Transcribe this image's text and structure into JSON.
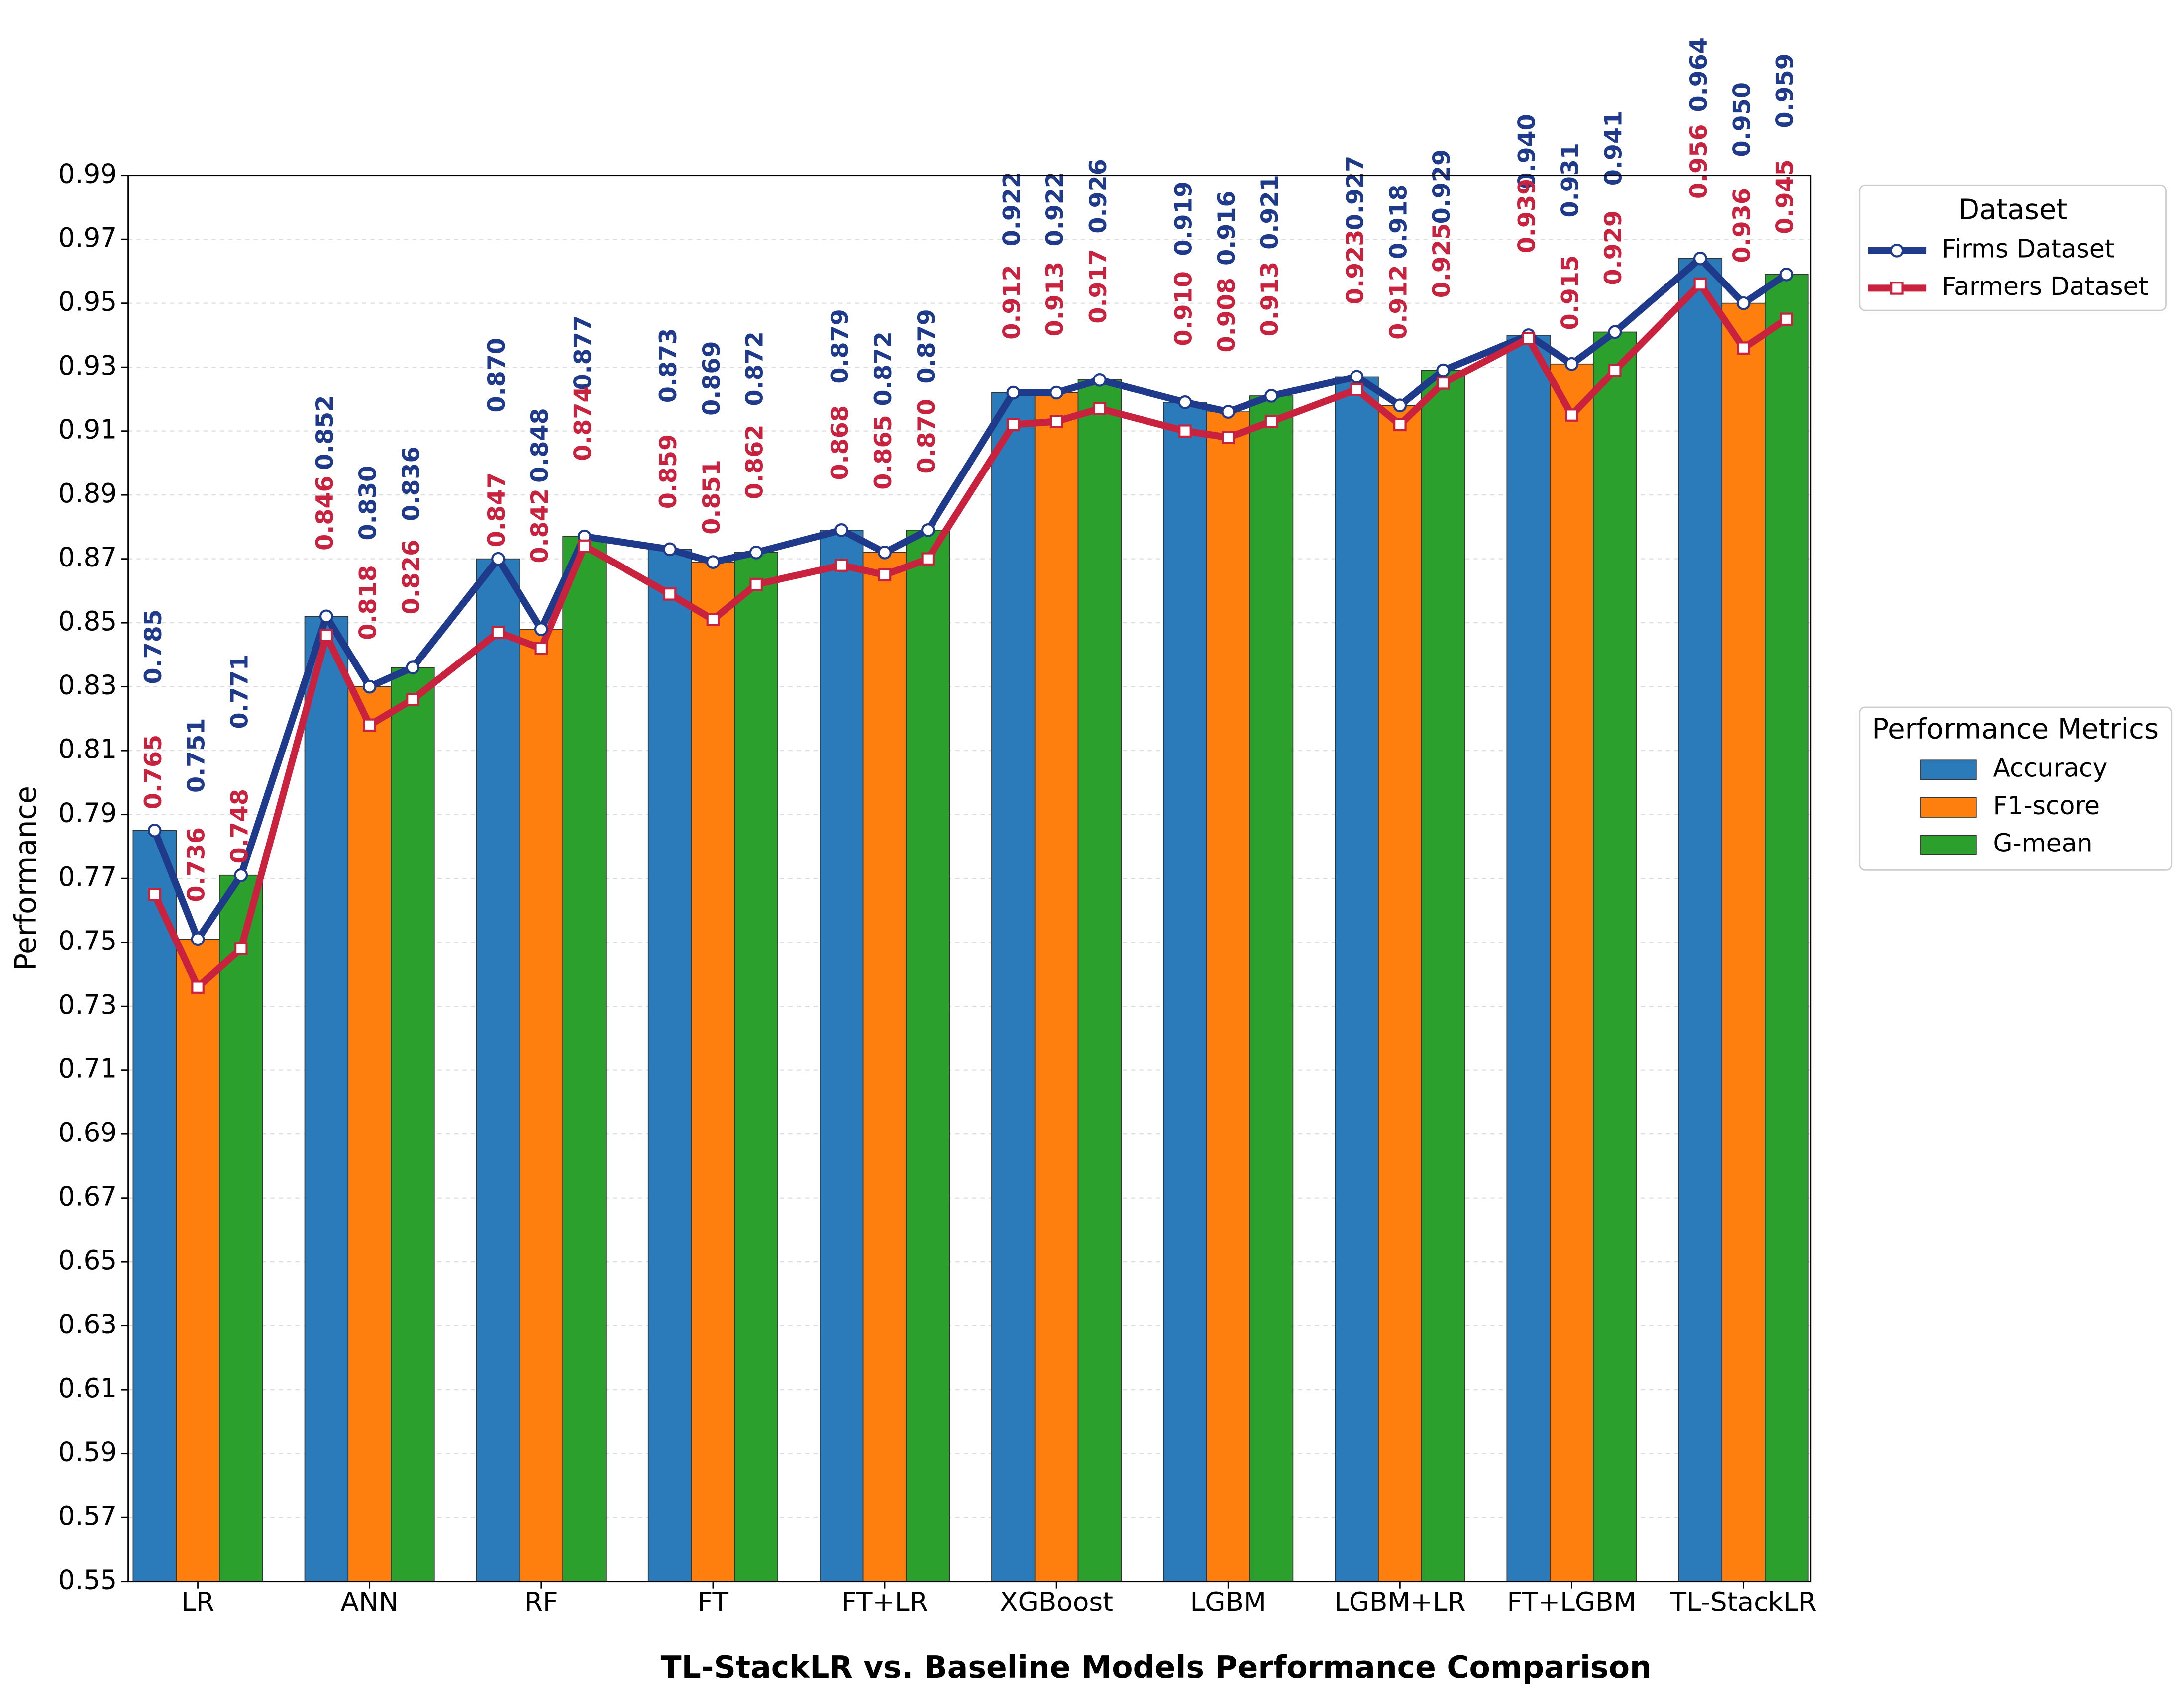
{
  "chart_data": {
    "type": "bar",
    "title": "TL-StackLR vs. Baseline Models Performance Comparison",
    "ylabel": "Performance",
    "categories": [
      "LR",
      "ANN",
      "RF",
      "FT",
      "FT+LR",
      "XGBoost",
      "LGBM",
      "LGBM+LR",
      "FT+LGBM",
      "TL-StackLR"
    ],
    "ylim": [
      0.55,
      0.99
    ],
    "yticks": [
      0.55,
      0.57,
      0.59,
      0.61,
      0.63,
      0.65,
      0.67,
      0.69,
      0.71,
      0.73,
      0.75,
      0.77,
      0.79,
      0.81,
      0.83,
      0.85,
      0.87,
      0.89,
      0.91,
      0.93,
      0.95,
      0.97,
      0.99
    ],
    "grid": true,
    "bar_legend_title": "Performance Metrics",
    "series": [
      {
        "name": "Accuracy",
        "color": "#2b7bba",
        "values": [
          0.785,
          0.852,
          0.87,
          0.873,
          0.879,
          0.922,
          0.919,
          0.927,
          0.94,
          0.964
        ]
      },
      {
        "name": "F1-score",
        "color": "#ff7f0e",
        "values": [
          0.751,
          0.83,
          0.848,
          0.869,
          0.872,
          0.922,
          0.916,
          0.918,
          0.931,
          0.95
        ]
      },
      {
        "name": "G-mean",
        "color": "#2ca02c",
        "values": [
          0.771,
          0.836,
          0.877,
          0.872,
          0.879,
          0.926,
          0.921,
          0.929,
          0.941,
          0.959
        ]
      }
    ],
    "line_legend_title": "Dataset",
    "lines": [
      {
        "name": "Firms Dataset",
        "color": "#1f3a8a",
        "marker": "circle",
        "values": [
          0.785,
          0.751,
          0.771,
          0.852,
          0.83,
          0.836,
          0.87,
          0.848,
          0.877,
          0.873,
          0.869,
          0.872,
          0.879,
          0.872,
          0.879,
          0.922,
          0.922,
          0.926,
          0.919,
          0.916,
          0.921,
          0.927,
          0.918,
          0.929,
          0.94,
          0.931,
          0.941,
          0.964,
          0.95,
          0.959
        ],
        "value_labels": [
          "0.785",
          "0.751",
          "0.771",
          "0.852",
          "0.830",
          "0.836",
          "0.870",
          "0.848",
          "0.877",
          "0.873",
          "0.869",
          "0.872",
          "0.879",
          "0.872",
          "0.879",
          "0.922",
          "0.922",
          "0.926",
          "0.919",
          "0.916",
          "0.921",
          "0.927",
          "0.918",
          "0.929",
          "0.940",
          "0.931",
          "0.941",
          "0.964",
          "0.950",
          "0.959"
        ]
      },
      {
        "name": "Farmers Dataset",
        "color": "#c8223f",
        "marker": "square",
        "values": [
          0.765,
          0.736,
          0.748,
          0.846,
          0.818,
          0.826,
          0.847,
          0.842,
          0.874,
          0.859,
          0.851,
          0.862,
          0.868,
          0.865,
          0.87,
          0.912,
          0.913,
          0.917,
          0.91,
          0.908,
          0.913,
          0.923,
          0.912,
          0.925,
          0.939,
          0.915,
          0.929,
          0.956,
          0.936,
          0.945
        ],
        "value_labels": [
          "0.765",
          "0.736",
          "0.748",
          "0.846",
          "0.818",
          "0.826",
          "0.847",
          "0.842",
          "0.874",
          "0.859",
          "0.851",
          "0.862",
          "0.868",
          "0.865",
          "0.870",
          "0.912",
          "0.913",
          "0.917",
          "0.910",
          "0.908",
          "0.913",
          "0.923",
          "0.912",
          "0.925",
          "0.939",
          "0.915",
          "0.929",
          "0.956",
          "0.936",
          "0.945"
        ]
      }
    ]
  }
}
